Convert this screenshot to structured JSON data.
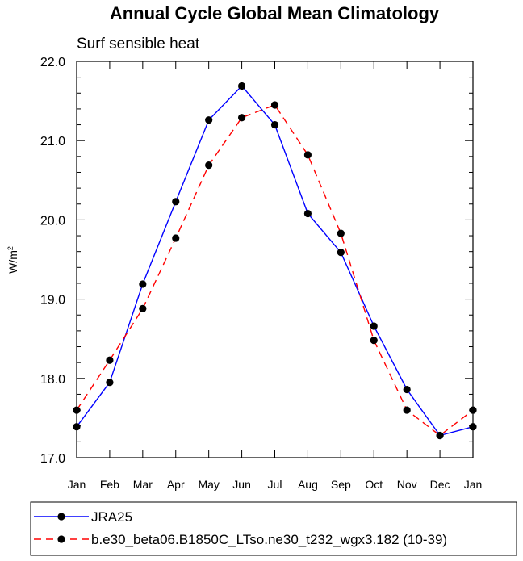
{
  "chart_data": {
    "type": "line",
    "title": "Annual Cycle Global Mean Climatology",
    "subtitle": "Surf sensible heat",
    "ylabel_base": "W/m",
    "ylabel_sup": "2",
    "xlabel": "",
    "categories": [
      "Jan",
      "Feb",
      "Mar",
      "Apr",
      "May",
      "Jun",
      "Jul",
      "Aug",
      "Sep",
      "Oct",
      "Nov",
      "Dec",
      "Jan"
    ],
    "ylim": [
      17.0,
      22.0
    ],
    "yticks": [
      "17.0",
      "18.0",
      "19.0",
      "20.0",
      "21.0",
      "22.0"
    ],
    "grid": false,
    "legend_position": "bottom",
    "series": [
      {
        "name": "JRA25",
        "color": "#0000ff",
        "dash": "solid",
        "marker": "filled-circle",
        "values": [
          17.39,
          17.95,
          19.19,
          20.23,
          21.26,
          21.69,
          21.2,
          20.08,
          19.59,
          18.66,
          17.86,
          17.28,
          17.39
        ]
      },
      {
        "name": "b.e30_beta06.B1850C_LTso.ne30_t232_wgx3.182 (10-39)",
        "color": "#ff0000",
        "dash": "dashed",
        "marker": "filled-circle",
        "values": [
          17.6,
          18.23,
          18.88,
          19.77,
          20.69,
          21.29,
          21.45,
          20.82,
          19.83,
          18.48,
          17.6,
          17.28,
          17.6
        ]
      }
    ]
  }
}
